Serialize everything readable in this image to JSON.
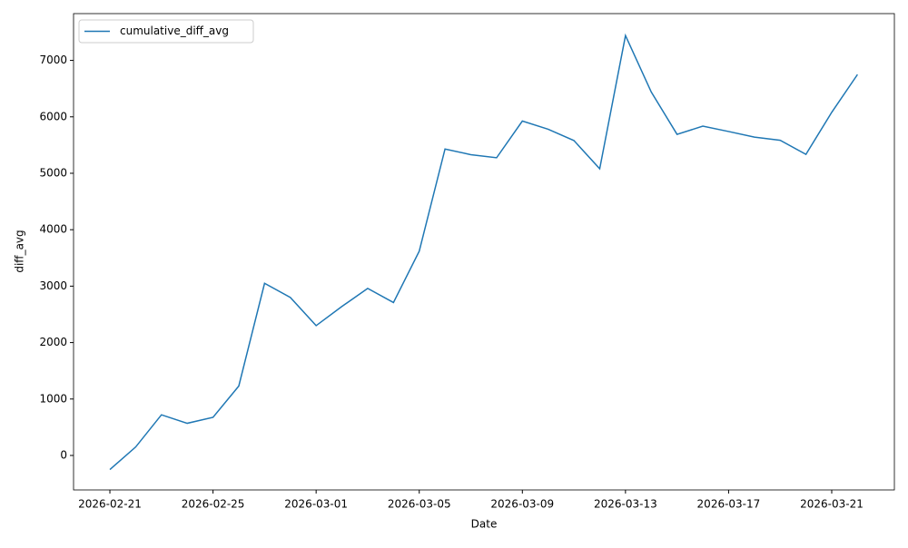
{
  "chart_data": {
    "type": "line",
    "xlabel": "Date",
    "ylabel": "diff_avg",
    "x": [
      "2026-02-21",
      "2026-02-22",
      "2026-02-23",
      "2026-02-24",
      "2026-02-25",
      "2026-02-26",
      "2026-02-27",
      "2026-02-28",
      "2026-03-01",
      "2026-03-02",
      "2026-03-03",
      "2026-03-04",
      "2026-03-05",
      "2026-03-06",
      "2026-03-07",
      "2026-03-08",
      "2026-03-09",
      "2026-03-10",
      "2026-03-11",
      "2026-03-12",
      "2026-03-13",
      "2026-03-14",
      "2026-03-15",
      "2026-03-16",
      "2026-03-17",
      "2026-03-18",
      "2026-03-19",
      "2026-03-20",
      "2026-03-21",
      "2026-03-22"
    ],
    "series": [
      {
        "name": "cumulative_diff_avg",
        "color": "#1f77b4",
        "values": [
          -250,
          150,
          720,
          570,
          675,
          1230,
          3050,
          2800,
          2300,
          2640,
          2960,
          2710,
          3620,
          5430,
          5330,
          5275,
          5925,
          5780,
          5580,
          5080,
          7440,
          6440,
          5690,
          5835,
          5740,
          5640,
          5585,
          5335,
          6080,
          6750
        ]
      }
    ],
    "xlim": [
      "2026-02-19T14:10:00Z",
      "2026-03-23T10:20:00Z"
    ],
    "xticks": [
      "2026-02-21",
      "2026-02-25",
      "2026-03-01",
      "2026-03-05",
      "2026-03-09",
      "2026-03-13",
      "2026-03-17",
      "2026-03-21"
    ],
    "ylim": [
      -611,
      7829
    ],
    "yticks": [
      0,
      1000,
      2000,
      3000,
      4000,
      5000,
      6000,
      7000
    ],
    "grid": false,
    "legend": "upper left"
  }
}
